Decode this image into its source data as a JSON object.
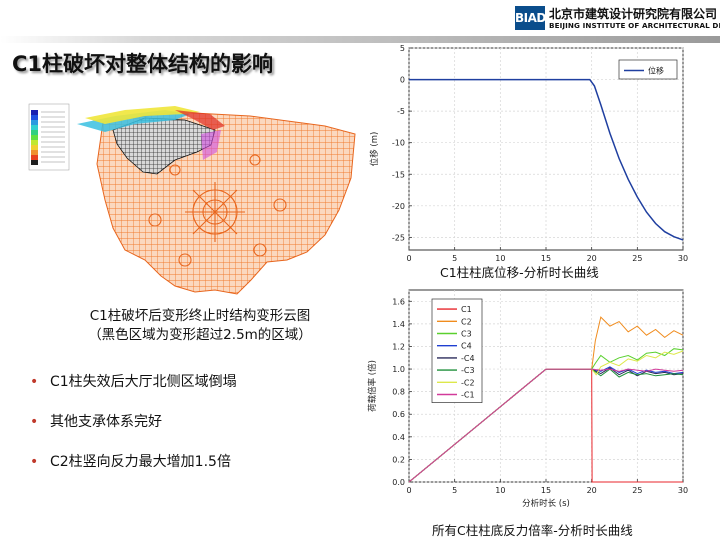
{
  "header": {
    "logo_text": "BIAD",
    "org_name_cn": "北京市建筑设计研究院有限公司",
    "org_name_en": "BEIJING INSTITUTE OF ARCHITECTURAL DESIGN"
  },
  "slide": {
    "title": "C1柱破坏对整体结构的影响",
    "figure_caption_line1": "C1柱破坏后变形终止时结构变形云图",
    "figure_caption_line2": "（黑色区域为变形超过2.5m的区域）",
    "bullets": [
      "C1柱失效后大厅北侧区域倒塌",
      "其他支承体系完好",
      "C2柱竖向反力最大增加1.5倍"
    ],
    "chart1_caption": "C1柱柱底位移-分析时长曲线",
    "chart2_caption": "所有C柱柱底反力倍率-分析时长曲线"
  },
  "chart_data": [
    {
      "type": "line",
      "ylabel": "位移 (m)",
      "xlim": [
        0,
        30
      ],
      "ylim": [
        -27,
        5
      ],
      "xticks": [
        0,
        5,
        10,
        15,
        20,
        25,
        30
      ],
      "yticks": [
        5,
        0,
        -5,
        -10,
        -15,
        -20,
        -25
      ],
      "grid": true,
      "legend_position": "top-right",
      "series": [
        {
          "name": "位移",
          "color": "#1f3fa0",
          "x": [
            0,
            19.8,
            20.3,
            21,
            22,
            23,
            24,
            25,
            26,
            27,
            28,
            29,
            30
          ],
          "y": [
            0,
            0,
            -1,
            -4,
            -8.5,
            -12.5,
            -15.8,
            -18.6,
            -21,
            -22.8,
            -24.1,
            -24.9,
            -25.4
          ]
        }
      ]
    },
    {
      "type": "line",
      "xlabel": "分析时长 (s)",
      "ylabel": "荷载倍率 (倍)",
      "xlim": [
        0,
        30
      ],
      "ylim": [
        0,
        1.7
      ],
      "xticks": [
        0,
        5,
        10,
        15,
        20,
        25,
        30
      ],
      "yticks": [
        0.0,
        0.2,
        0.4,
        0.6,
        0.8,
        1.0,
        1.2,
        1.4,
        1.6
      ],
      "grid": true,
      "legend_position": "top-left",
      "series": [
        {
          "name": "C1",
          "color": "#e8262b",
          "x": [
            0,
            15,
            20,
            20.05,
            30
          ],
          "y": [
            0,
            1.0,
            1.0,
            0,
            0
          ]
        },
        {
          "name": "C2",
          "color": "#f08c1e",
          "x": [
            0,
            15,
            20,
            20.4,
            21,
            22,
            23,
            24,
            25,
            26,
            27,
            28,
            29,
            30
          ],
          "y": [
            0,
            1.0,
            1.0,
            1.25,
            1.46,
            1.38,
            1.42,
            1.33,
            1.38,
            1.3,
            1.35,
            1.28,
            1.34,
            1.3
          ]
        },
        {
          "name": "C3",
          "color": "#5ad02e",
          "x": [
            0,
            15,
            20,
            20.4,
            21,
            22,
            23,
            24,
            25,
            26,
            27,
            28,
            29,
            30
          ],
          "y": [
            0,
            1.0,
            1.0,
            1.05,
            1.12,
            1.06,
            1.1,
            1.12,
            1.08,
            1.14,
            1.15,
            1.12,
            1.18,
            1.17
          ]
        },
        {
          "name": "C4",
          "color": "#1f3fd1",
          "x": [
            0,
            15,
            20,
            21,
            22,
            23,
            24,
            25,
            26,
            27,
            28,
            29,
            30
          ],
          "y": [
            0,
            1.0,
            1.0,
            0.98,
            1.02,
            0.97,
            1.0,
            0.96,
            0.99,
            0.97,
            0.98,
            0.96,
            0.97
          ]
        },
        {
          "name": "-C4",
          "color": "#2a2a5a",
          "x": [
            0,
            15,
            20,
            21,
            22,
            23,
            24,
            25,
            26,
            27,
            28,
            29,
            30
          ],
          "y": [
            0,
            1.0,
            1.0,
            0.96,
            1.01,
            0.95,
            0.99,
            0.94,
            0.98,
            0.96,
            0.97,
            0.95,
            0.96
          ]
        },
        {
          "name": "-C3",
          "color": "#1e8f3a",
          "x": [
            0,
            15,
            20,
            21,
            22,
            23,
            24,
            25,
            26,
            27,
            28,
            29,
            30
          ],
          "y": [
            0,
            1.0,
            1.0,
            0.94,
            1.0,
            0.93,
            0.97,
            0.95,
            0.96,
            0.94,
            0.95,
            0.96,
            0.95
          ]
        },
        {
          "name": "-C2",
          "color": "#dde84a",
          "x": [
            0,
            15,
            20,
            20.5,
            21,
            22,
            23,
            24,
            25,
            26,
            27,
            28,
            29,
            30
          ],
          "y": [
            0,
            1.0,
            1.0,
            0.95,
            1.02,
            1.06,
            1.03,
            1.09,
            1.07,
            1.12,
            1.1,
            1.15,
            1.13,
            1.16
          ]
        },
        {
          "name": "-C1",
          "color": "#d23a9a",
          "x": [
            0,
            15,
            20,
            21,
            22,
            23,
            24,
            25,
            26,
            27,
            28,
            29,
            30
          ],
          "y": [
            0,
            1.0,
            1.0,
            0.99,
            1.0,
            0.98,
            1.0,
            0.99,
            0.98,
            1.0,
            0.99,
            0.98,
            0.99
          ]
        }
      ]
    }
  ]
}
